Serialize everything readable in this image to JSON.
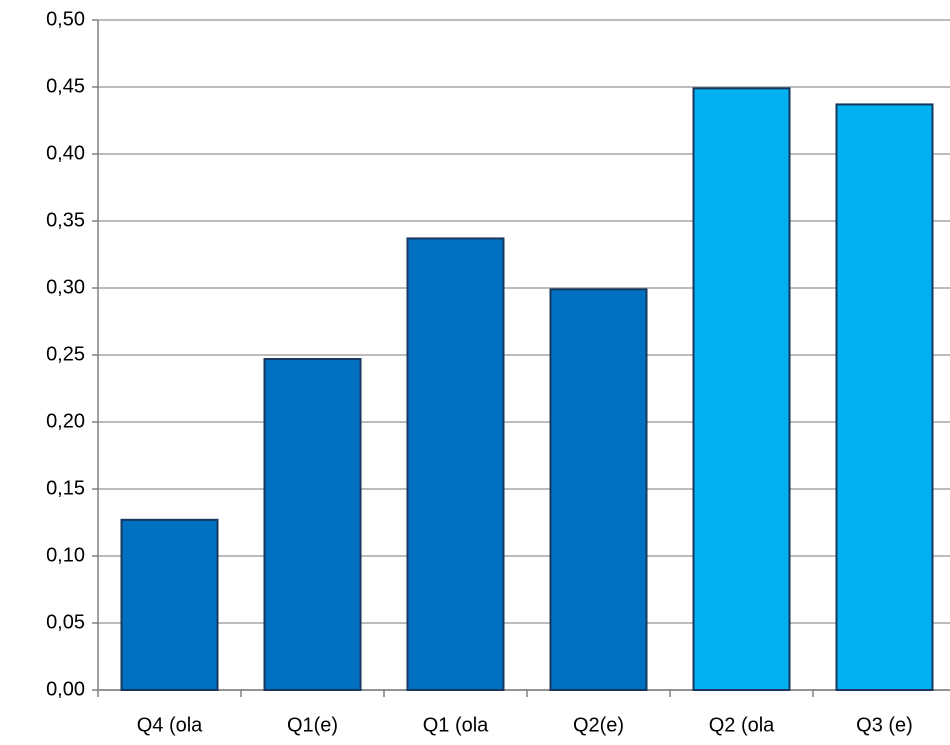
{
  "chart_data": {
    "type": "bar",
    "categories": [
      "Q4 (ola",
      "Q1(e)",
      "Q1 (ola",
      "Q2(e)",
      "Q2 (ola",
      "Q3 (e)"
    ],
    "values": [
      0.127,
      0.247,
      0.337,
      0.299,
      0.449,
      0.437
    ],
    "colors": [
      "#0070c0",
      "#0070c0",
      "#0070c0",
      "#0070c0",
      "#00b0f0",
      "#00b0f0"
    ],
    "ylim": [
      0,
      0.5
    ],
    "yticks": [
      {
        "value": 0,
        "label": "0,00"
      },
      {
        "value": 0.05,
        "label": "0,05"
      },
      {
        "value": 0.1,
        "label": "0,10"
      },
      {
        "value": 0.15,
        "label": "0,15"
      },
      {
        "value": 0.2,
        "label": "0,20"
      },
      {
        "value": 0.25,
        "label": "0,25"
      },
      {
        "value": 0.3,
        "label": "0,30"
      },
      {
        "value": 0.35,
        "label": "0,35"
      },
      {
        "value": 0.4,
        "label": "0,40"
      },
      {
        "value": 0.45,
        "label": "0,45"
      },
      {
        "value": 0.5,
        "label": "0,50"
      }
    ],
    "grid": true
  }
}
